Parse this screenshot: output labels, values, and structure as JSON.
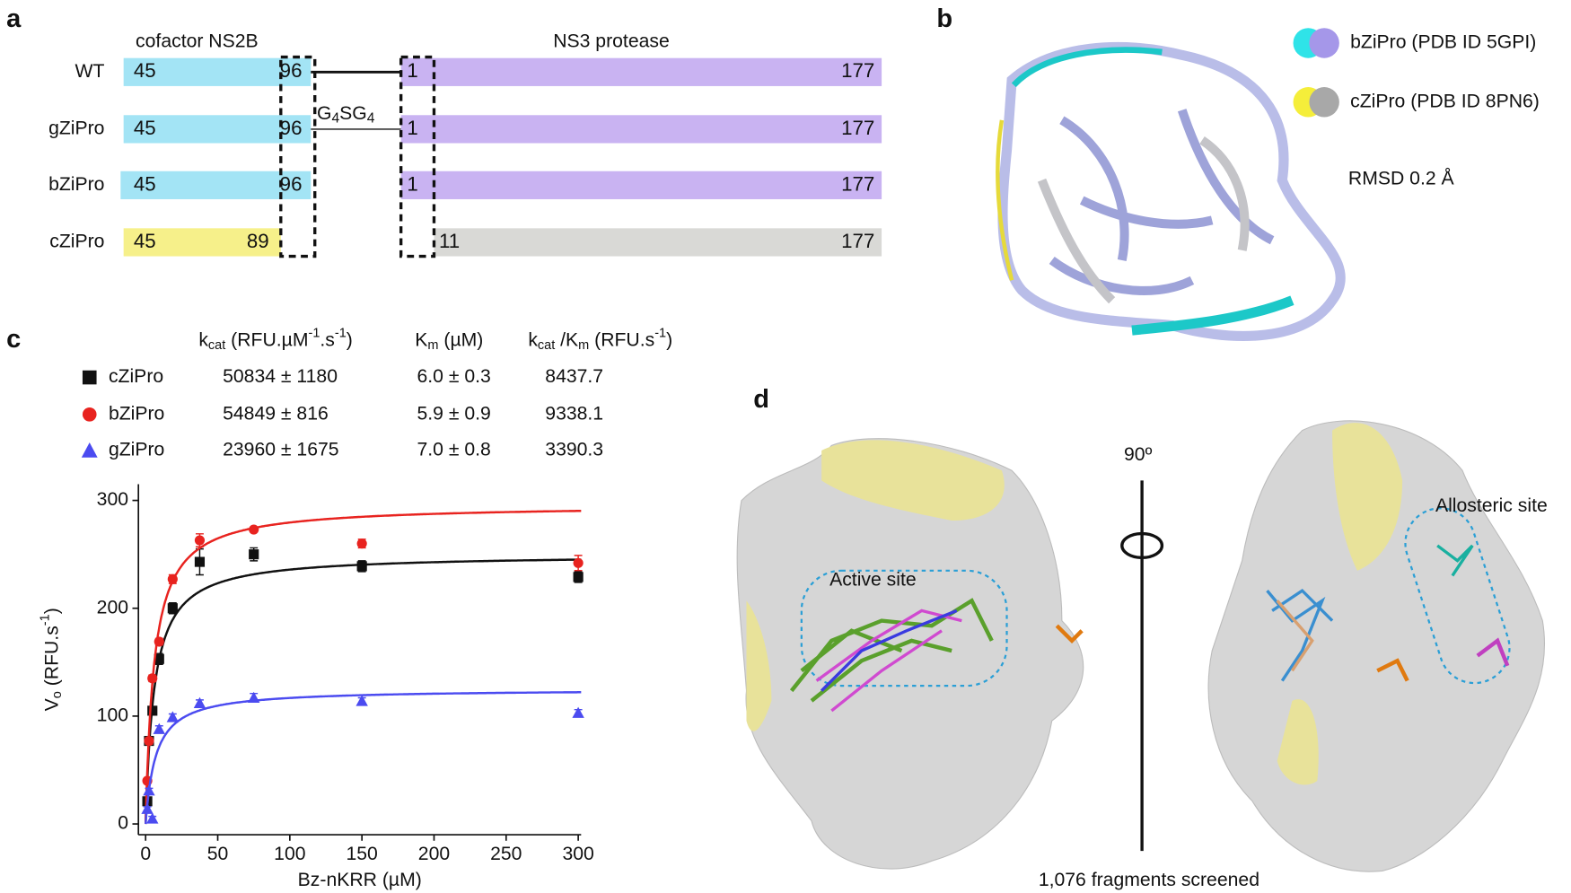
{
  "panel_labels": [
    "a",
    "b",
    "c",
    "d"
  ],
  "panel_a": {
    "cofactor_label": "cofactor NS2B",
    "protease_label": "NS3 protease",
    "linker": [
      "G",
      "4",
      "SG",
      "4"
    ],
    "rows": [
      {
        "name": "WT",
        "numbers": [
          "45",
          "96",
          "1",
          "177"
        ]
      },
      {
        "name": "gZiPro",
        "numbers": [
          "45",
          "96",
          "1",
          "177"
        ]
      },
      {
        "name": "bZiPro",
        "numbers": [
          "45",
          "96",
          "1",
          "177"
        ]
      },
      {
        "name": "cZiPro",
        "numbers": [
          "45",
          "89",
          "11",
          "177"
        ]
      }
    ]
  },
  "panel_b": {
    "legend": [
      "bZiPro  (PDB ID 5GPI)",
      "cZiPro  (PDB ID 8PN6)"
    ],
    "rmsd": "RMSD 0.2 Å"
  },
  "panel_d": {
    "active_site": "Active site",
    "rotation": "90º",
    "allosteric_site": "Allosteric site",
    "caption": "1,076 fragments screened"
  },
  "chart_data": {
    "type": "scatter",
    "x_label": "Bz-nKRR (µM)",
    "y_label": [
      "V",
      "o",
      " (RFU.s",
      "-1",
      ")"
    ],
    "xlim": [
      -5,
      302
    ],
    "ylim": [
      -10,
      315
    ],
    "xticks": [
      0,
      50,
      100,
      150,
      200,
      250,
      300
    ],
    "yticks": [
      0,
      100,
      200,
      300
    ],
    "table": {
      "headers": [
        [
          "k",
          "cat",
          " (RFU.µM",
          "-1",
          ".s",
          "-1",
          ")"
        ],
        [
          "K",
          "m",
          " (µM)"
        ],
        [
          "k",
          "cat",
          " /K",
          "m",
          " (RFU.s",
          "-1",
          ")"
        ]
      ],
      "rows": [
        [
          "50834 ± 1180",
          "6.0 ± 0.3",
          "8437.7"
        ],
        [
          "54849 ± 816",
          "5.9 ± 0.9",
          "9338.1"
        ],
        [
          "23960 ± 1675",
          "7.0 ± 0.8",
          "3390.3"
        ]
      ]
    },
    "series": [
      {
        "name": "cZiPro",
        "color": "#111111",
        "marker": "square",
        "x": [
          1.17,
          2.34,
          4.69,
          9.38,
          18.75,
          37.5,
          75,
          150,
          300
        ],
        "values": [
          21,
          77,
          105,
          153,
          200,
          243,
          250,
          239,
          229
        ],
        "errors": [
          2,
          3,
          3,
          5,
          5,
          12,
          6,
          5,
          5
        ],
        "fit_vmax": 250,
        "fit_km": 6.0
      },
      {
        "name": "bZiPro",
        "color": "#e8231f",
        "marker": "circle",
        "x": [
          1.17,
          2.34,
          4.69,
          9.38,
          18.75,
          37.5,
          75,
          150,
          300
        ],
        "values": [
          40,
          77,
          135,
          169,
          227,
          263,
          273,
          260,
          242
        ],
        "errors": [
          2,
          3,
          3,
          3,
          4,
          6,
          2,
          4,
          7
        ],
        "fit_vmax": 296,
        "fit_km": 5.9
      },
      {
        "name": "gZiPro",
        "color": "#4b4bf0",
        "marker": "triangle",
        "x": [
          1.17,
          2.34,
          4.69,
          9.38,
          18.75,
          37.5,
          75,
          150,
          300
        ],
        "values": [
          14,
          31,
          5,
          88,
          99,
          112,
          117,
          114,
          103
        ],
        "errors": [
          2,
          2,
          2,
          3,
          3,
          3,
          4,
          3,
          3
        ],
        "fit_vmax": 125,
        "fit_km": 7.0
      }
    ]
  }
}
